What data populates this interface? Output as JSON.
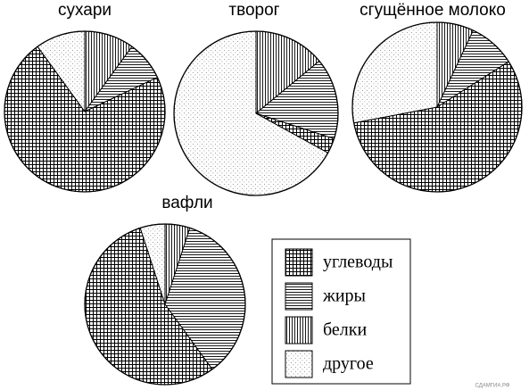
{
  "chart_data": [
    {
      "type": "pie",
      "title": "сухари",
      "values": [
        72,
        8,
        10,
        10
      ]
    },
    {
      "type": "pie",
      "title": "творог",
      "values": [
        3,
        16,
        14,
        67
      ]
    },
    {
      "type": "pie",
      "title": "сгущённое молоко",
      "values": [
        56,
        9,
        7,
        28
      ]
    },
    {
      "type": "pie",
      "title": "вафли",
      "values": [
        55,
        35,
        5,
        5
      ]
    }
  ],
  "legend": [
    "углеводы",
    "жиры",
    "белки",
    "другое"
  ],
  "watermark": "СДАМГИА.РФ"
}
